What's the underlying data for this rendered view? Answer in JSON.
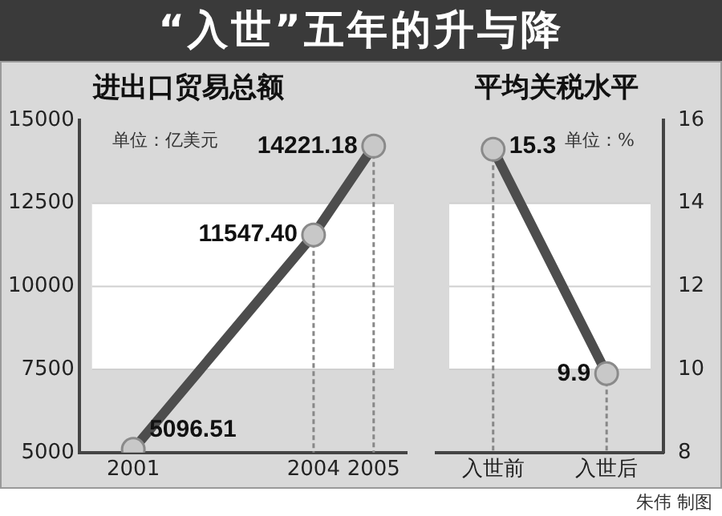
{
  "chart_data": [
    {
      "type": "line",
      "title": "“入世”五年的升与降",
      "subtitle": "进出口贸易总额",
      "annotations": [
        "单位：亿美元"
      ],
      "x": [
        2001,
        2004,
        2005
      ],
      "values": [
        5096.51,
        11547.4,
        14221.18
      ],
      "value_labels": [
        "5096.51",
        "11547.40",
        "14221.18"
      ],
      "color": "#4d4d4d",
      "xlim": [
        2000.1,
        2005.55
      ],
      "xticks": [
        2001,
        2004,
        2005
      ],
      "ylim": [
        5000,
        15000
      ],
      "yticks": [
        5000,
        7500,
        10000,
        12500,
        15000
      ],
      "bands": [
        {
          "axis": "y",
          "from": 7500,
          "to": 12500,
          "color": "#ffffff"
        }
      ],
      "ref_lines": [
        {
          "axis": "x",
          "value": 2004,
          "color": "#888888",
          "line_style": "dashed"
        },
        {
          "axis": "x",
          "value": 2005,
          "color": "#888888",
          "line_style": "dashed"
        }
      ],
      "grid": "y",
      "marker": "circle",
      "legend": false
    },
    {
      "type": "line",
      "title": "平均关税水平",
      "annotations": [
        "单位：%",
        "朱伟 制图"
      ],
      "categories": [
        "入世前",
        "入世后"
      ],
      "series": [
        {
          "color": "#4d4d4d",
          "axis": "y2",
          "values": [
            15.3,
            9.9
          ]
        }
      ],
      "y2lim": [
        8,
        16
      ],
      "y2ticks": [
        8,
        10,
        12,
        14,
        16
      ],
      "bands": [
        {
          "axis": "y2",
          "from": 10,
          "to": 14,
          "color": "#ffffff"
        }
      ],
      "ref_lines": [
        {
          "axis": "x",
          "value": "入世前",
          "color": "#888888",
          "line_style": "dashed"
        },
        {
          "axis": "x",
          "value": "入世后",
          "color": "#888888",
          "line_style": "dashed"
        }
      ],
      "grid": "y",
      "marker": "circle",
      "data_labels": true,
      "legend": false
    }
  ]
}
